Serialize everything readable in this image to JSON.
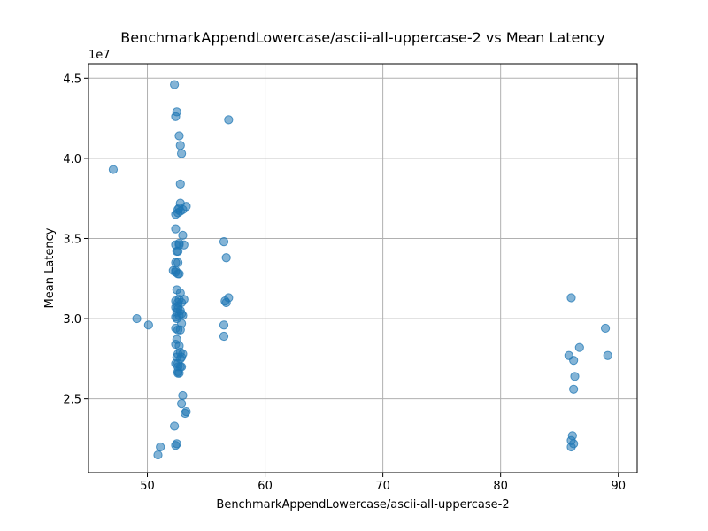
{
  "chart_data": {
    "type": "scatter",
    "title": "BenchmarkAppendLowercase/ascii-all-uppercase-2 vs Mean Latency",
    "xlabel": "BenchmarkAppendLowercase/ascii-all-uppercase-2",
    "ylabel": "Mean Latency",
    "y_offset_label": "1e7",
    "xlim": [
      45.0,
      91.6
    ],
    "ylim": [
      20400000.0,
      45900000.0
    ],
    "x_ticks": [
      50,
      60,
      70,
      80,
      90
    ],
    "x_tick_labels": [
      "50",
      "60",
      "70",
      "80",
      "90"
    ],
    "y_ticks": [
      25000000.0,
      30000000.0,
      35000000.0,
      40000000.0,
      45000000.0
    ],
    "y_tick_labels": [
      "2.5",
      "3.0",
      "3.5",
      "4.0",
      "4.5"
    ],
    "grid": true,
    "point_color": "#1f77b4",
    "point_alpha": 0.55,
    "x": [
      47.1,
      49.1,
      50.1,
      50.9,
      51.1,
      52.3,
      52.4,
      52.5,
      52.7,
      52.8,
      52.9,
      52.8,
      52.8,
      52.6,
      52.7,
      52.8,
      53.0,
      53.3,
      52.6,
      52.4,
      52.4,
      52.7,
      52.4,
      53.0,
      52.5,
      52.7,
      53.1,
      52.6,
      52.4,
      52.6,
      52.4,
      52.2,
      52.4,
      52.6,
      52.7,
      52.8,
      52.5,
      52.7,
      53.1,
      52.4,
      52.6,
      52.9,
      52.6,
      52.4,
      52.6,
      52.8,
      52.9,
      52.5,
      52.7,
      53.0,
      52.4,
      52.5,
      52.9,
      52.4,
      52.6,
      52.8,
      52.5,
      52.4,
      52.7,
      52.8,
      52.6,
      53.0,
      52.5,
      52.8,
      52.9,
      52.6,
      52.9,
      52.4,
      52.6,
      52.8,
      52.6,
      52.7,
      52.6,
      53.0,
      52.9,
      53.3,
      53.2,
      52.3,
      52.5,
      52.4,
      56.9,
      56.5,
      56.7,
      56.9,
      56.7,
      56.6,
      56.5,
      56.5,
      86.0,
      85.8,
      86.2,
      86.3,
      86.2,
      86.0,
      86.1,
      86.2,
      86.0,
      86.7,
      88.9,
      89.1
    ],
    "y": [
      39300000.0,
      30000000.0,
      29600000.0,
      21500000.0,
      22000000.0,
      44600000.0,
      42600000.0,
      42900000.0,
      41400000.0,
      40800000.0,
      40300000.0,
      38400000.0,
      37200000.0,
      36800000.0,
      36900000.0,
      36700000.0,
      36800000.0,
      37000000.0,
      36600000.0,
      36500000.0,
      35600000.0,
      34700000.0,
      34600000.0,
      35200000.0,
      34200000.0,
      34600000.0,
      34600000.0,
      34200000.0,
      33500000.0,
      33500000.0,
      33000000.0,
      33000000.0,
      32900000.0,
      32800000.0,
      32800000.0,
      31600000.0,
      31800000.0,
      31200000.0,
      31200000.0,
      31100000.0,
      31000000.0,
      31000000.0,
      30800000.0,
      30700000.0,
      30600000.0,
      30500000.0,
      30300000.0,
      30400000.0,
      30200000.0,
      30200000.0,
      30100000.0,
      30000000.0,
      29700000.0,
      29400000.0,
      29300000.0,
      29300000.0,
      28700000.0,
      28400000.0,
      28300000.0,
      27900000.0,
      27800000.0,
      27800000.0,
      27600000.0,
      27500000.0,
      27600000.0,
      27200000.0,
      27000000.0,
      27200000.0,
      27000000.0,
      27000000.0,
      26600000.0,
      26600000.0,
      26700000.0,
      25200000.0,
      24700000.0,
      24200000.0,
      24100000.0,
      23300000.0,
      22200000.0,
      22100000.0,
      42400000.0,
      34800000.0,
      33800000.0,
      31300000.0,
      31000000.0,
      31100000.0,
      29600000.0,
      28900000.0,
      31300000.0,
      27700000.0,
      27400000.0,
      26400000.0,
      25600000.0,
      22400000.0,
      22700000.0,
      22200000.0,
      22000000.0,
      28200000.0,
      29400000.0,
      27700000.0
    ]
  }
}
